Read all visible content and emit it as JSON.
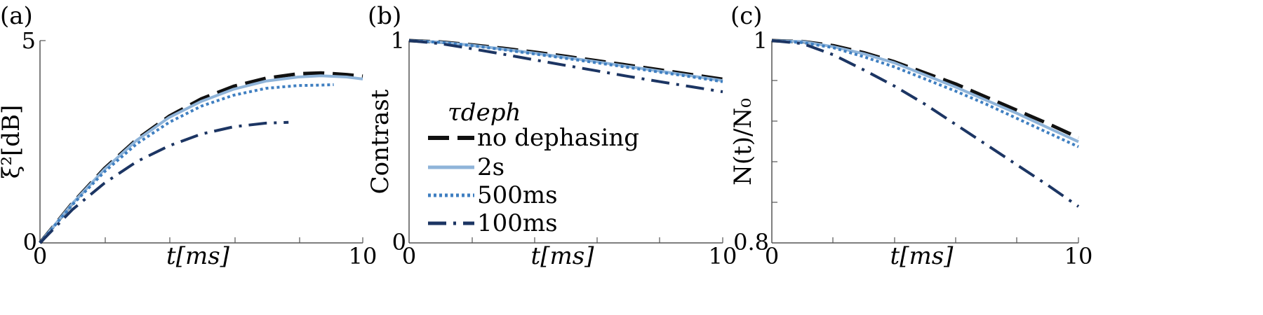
{
  "chart_data": [
    {
      "type": "line",
      "panel_label": "(a)",
      "xlabel": "t[ms]",
      "ylabel": "ξ²[dB]",
      "xlim": [
        0,
        10
      ],
      "ylim": [
        0,
        5
      ],
      "xticklabels": [
        "0",
        "10"
      ],
      "yticklabels": [
        "0",
        "5"
      ],
      "series": [
        {
          "key": "no_dephasing",
          "x": [
            0,
            1,
            2,
            3,
            4,
            5,
            6,
            7,
            8,
            8.7,
            9.5,
            10
          ],
          "y": [
            0,
            0.98,
            1.84,
            2.56,
            3.13,
            3.56,
            3.87,
            4.07,
            4.18,
            4.2,
            4.16,
            4.12
          ]
        },
        {
          "key": "2s",
          "x": [
            0,
            1,
            2,
            3,
            4,
            5,
            6,
            7,
            8,
            8.7,
            9.5,
            10
          ],
          "y": [
            0,
            0.97,
            1.82,
            2.54,
            3.1,
            3.5,
            3.8,
            4.0,
            4.1,
            4.13,
            4.1,
            4.05
          ]
        },
        {
          "key": "500ms",
          "x": [
            0,
            1,
            2,
            3,
            4,
            5,
            6,
            7,
            8,
            8.7,
            9.1
          ],
          "y": [
            0,
            0.94,
            1.76,
            2.45,
            2.98,
            3.38,
            3.65,
            3.82,
            3.89,
            3.9,
            3.91
          ]
        },
        {
          "key": "100ms",
          "x": [
            0,
            1,
            2,
            3,
            4,
            5,
            6,
            7,
            7.7
          ],
          "y": [
            0,
            0.82,
            1.48,
            2.01,
            2.4,
            2.69,
            2.87,
            2.96,
            2.98
          ]
        }
      ]
    },
    {
      "type": "line",
      "panel_label": "(b)",
      "xlabel": "t[ms]",
      "ylabel": "Contrast",
      "xlim": [
        0,
        10
      ],
      "ylim": [
        0,
        1
      ],
      "xticklabels": [
        "0",
        "10"
      ],
      "yticklabels": [
        "0",
        "1"
      ],
      "legend": {
        "title": "τdeph",
        "entries": [
          "no dephasing",
          "2s",
          "500ms",
          "100ms"
        ]
      },
      "series": [
        {
          "key": "no_dephasing",
          "x": [
            0,
            1,
            2,
            3,
            4,
            5,
            6,
            7,
            8,
            9,
            10
          ],
          "y": [
            1.0,
            0.993,
            0.979,
            0.962,
            0.943,
            0.922,
            0.9,
            0.878,
            0.855,
            0.832,
            0.809
          ]
        },
        {
          "key": "2s",
          "x": [
            0,
            1,
            2,
            3,
            4,
            5,
            6,
            7,
            8,
            9,
            10
          ],
          "y": [
            1.0,
            0.992,
            0.977,
            0.958,
            0.938,
            0.917,
            0.895,
            0.872,
            0.849,
            0.826,
            0.802
          ]
        },
        {
          "key": "500ms",
          "x": [
            0,
            1,
            2,
            3,
            4,
            5,
            6,
            7,
            8,
            9,
            10
          ],
          "y": [
            1.0,
            0.991,
            0.975,
            0.955,
            0.934,
            0.912,
            0.89,
            0.867,
            0.844,
            0.821,
            0.797
          ]
        },
        {
          "key": "100ms",
          "x": [
            0,
            1,
            2,
            3,
            4,
            5,
            6,
            7,
            8,
            9,
            10
          ],
          "y": [
            1.0,
            0.985,
            0.96,
            0.933,
            0.905,
            0.877,
            0.85,
            0.823,
            0.797,
            0.772,
            0.747
          ]
        }
      ]
    },
    {
      "type": "line",
      "panel_label": "(c)",
      "xlabel": "t[ms]",
      "ylabel": "N(t)/N₀",
      "xlim": [
        0,
        10
      ],
      "ylim": [
        0.8,
        1
      ],
      "xticklabels": [
        "0",
        "10"
      ],
      "yticklabels": [
        "0.8",
        "1"
      ],
      "series": [
        {
          "key": "no_dephasing",
          "x": [
            0,
            1,
            2,
            3,
            4,
            5,
            6,
            7,
            8,
            9,
            10
          ],
          "y": [
            1.0,
            0.999,
            0.995,
            0.988,
            0.979,
            0.968,
            0.957,
            0.944,
            0.931,
            0.918,
            0.904
          ]
        },
        {
          "key": "2s",
          "x": [
            0,
            1,
            2,
            3,
            4,
            5,
            6,
            7,
            8,
            9,
            10
          ],
          "y": [
            1.0,
            0.999,
            0.994,
            0.987,
            0.978,
            0.966,
            0.954,
            0.941,
            0.928,
            0.914,
            0.9
          ]
        },
        {
          "key": "500ms",
          "x": [
            0,
            1,
            2,
            3,
            4,
            5,
            6,
            7,
            8,
            9,
            10
          ],
          "y": [
            1.0,
            0.998,
            0.993,
            0.984,
            0.974,
            0.962,
            0.95,
            0.937,
            0.923,
            0.909,
            0.895
          ]
        },
        {
          "key": "100ms",
          "x": [
            0,
            1,
            2,
            3,
            4,
            5,
            6,
            7,
            8,
            9,
            10
          ],
          "y": [
            1.0,
            0.997,
            0.986,
            0.971,
            0.955,
            0.937,
            0.917,
            0.897,
            0.877,
            0.857,
            0.836
          ]
        }
      ]
    }
  ],
  "series_styles": {
    "no_dephasing": {
      "color": "#111111",
      "dash": "30,12",
      "width": 5
    },
    "2s": {
      "color": "#8fb4d9",
      "dash": "",
      "width": 4
    },
    "500ms": {
      "color": "#3f7fc1",
      "dash": "4,4",
      "width": 4
    },
    "100ms": {
      "color": "#1c3563",
      "dash": "26,10,4,10",
      "width": 4
    }
  }
}
